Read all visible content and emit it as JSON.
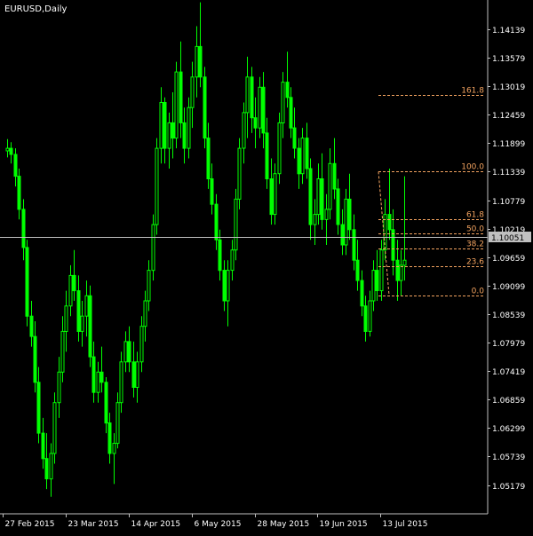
{
  "window": {
    "title": "EURUSD,Daily"
  },
  "chart_data": {
    "type": "candlestick",
    "symbol": "EURUSD",
    "timeframe": "Daily",
    "ylim": [
      1.0478,
      1.1467
    ],
    "y_ticks": [
      "1.14139",
      "1.13579",
      "1.13019",
      "1.12459",
      "1.11899",
      "1.11339",
      "1.10779",
      "1.10219",
      "1.09659",
      "1.09099",
      "1.08539",
      "1.07979",
      "1.07419",
      "1.06859",
      "1.06299",
      "1.05739",
      "1.05179"
    ],
    "x_ticks": [
      "27 Feb 2015",
      "23 Mar 2015",
      "14 Apr 2015",
      "6 May 2015",
      "28 May 2015",
      "19 Jun 2015",
      "13 Jul 2015"
    ],
    "x_tick_bar_index": [
      0,
      16,
      32,
      48,
      64,
      80,
      96
    ],
    "current_price": "1.10051",
    "bars": [
      [
        1.1175,
        1.1198,
        1.1162,
        1.118
      ],
      [
        1.118,
        1.1192,
        1.115,
        1.1168
      ],
      [
        1.1168,
        1.118,
        1.1105,
        1.1125
      ],
      [
        1.1125,
        1.114,
        1.104,
        1.106
      ],
      [
        1.106,
        1.108,
        1.096,
        1.0985
      ],
      [
        1.0985,
        1.1,
        1.083,
        1.085
      ],
      [
        1.085,
        1.088,
        1.079,
        1.081
      ],
      [
        1.081,
        1.084,
        1.07,
        1.072
      ],
      [
        1.072,
        1.075,
        1.06,
        1.062
      ],
      [
        1.062,
        1.065,
        1.055,
        1.057
      ],
      [
        1.057,
        1.062,
        1.051,
        1.053
      ],
      [
        1.053,
        1.06,
        1.0495,
        1.058
      ],
      [
        1.058,
        1.07,
        1.056,
        1.068
      ],
      [
        1.068,
        1.077,
        1.065,
        1.074
      ],
      [
        1.074,
        1.085,
        1.072,
        1.082
      ],
      [
        1.082,
        1.09,
        1.078,
        1.087
      ],
      [
        1.087,
        1.095,
        1.085,
        1.093
      ],
      [
        1.093,
        1.098,
        1.088,
        1.09
      ],
      [
        1.09,
        1.093,
        1.08,
        1.082
      ],
      [
        1.082,
        1.088,
        1.079,
        1.085
      ],
      [
        1.085,
        1.092,
        1.081,
        1.089
      ],
      [
        1.089,
        1.091,
        1.075,
        1.077
      ],
      [
        1.077,
        1.08,
        1.068,
        1.07
      ],
      [
        1.07,
        1.076,
        1.068,
        1.074
      ],
      [
        1.074,
        1.079,
        1.07,
        1.072
      ],
      [
        1.072,
        1.073,
        1.062,
        1.064
      ],
      [
        1.064,
        1.066,
        1.056,
        1.058
      ],
      [
        1.058,
        1.062,
        1.052,
        1.06
      ],
      [
        1.06,
        1.07,
        1.059,
        1.068
      ],
      [
        1.068,
        1.078,
        1.066,
        1.076
      ],
      [
        1.076,
        1.082,
        1.074,
        1.08
      ],
      [
        1.08,
        1.083,
        1.074,
        1.076
      ],
      [
        1.076,
        1.08,
        1.069,
        1.071
      ],
      [
        1.071,
        1.078,
        1.068,
        1.076
      ],
      [
        1.076,
        1.085,
        1.074,
        1.083
      ],
      [
        1.083,
        1.09,
        1.08,
        1.088
      ],
      [
        1.088,
        1.096,
        1.086,
        1.094
      ],
      [
        1.094,
        1.105,
        1.092,
        1.103
      ],
      [
        1.103,
        1.12,
        1.101,
        1.118
      ],
      [
        1.118,
        1.13,
        1.115,
        1.127
      ],
      [
        1.127,
        1.128,
        1.115,
        1.118
      ],
      [
        1.118,
        1.125,
        1.114,
        1.123
      ],
      [
        1.123,
        1.129,
        1.116,
        1.12
      ],
      [
        1.12,
        1.135,
        1.118,
        1.133
      ],
      [
        1.133,
        1.139,
        1.12,
        1.123
      ],
      [
        1.123,
        1.126,
        1.115,
        1.118
      ],
      [
        1.118,
        1.128,
        1.116,
        1.126
      ],
      [
        1.126,
        1.135,
        1.122,
        1.132
      ],
      [
        1.132,
        1.142,
        1.128,
        1.138
      ],
      [
        1.138,
        1.1467,
        1.13,
        1.132
      ],
      [
        1.132,
        1.134,
        1.118,
        1.12
      ],
      [
        1.12,
        1.123,
        1.11,
        1.112
      ],
      [
        1.112,
        1.115,
        1.105,
        1.107
      ],
      [
        1.107,
        1.109,
        1.098,
        1.1
      ],
      [
        1.1,
        1.102,
        1.092,
        1.094
      ],
      [
        1.094,
        1.096,
        1.086,
        1.088
      ],
      [
        1.088,
        1.096,
        1.083,
        1.094
      ],
      [
        1.094,
        1.1,
        1.092,
        1.098
      ],
      [
        1.098,
        1.11,
        1.096,
        1.108
      ],
      [
        1.108,
        1.12,
        1.106,
        1.118
      ],
      [
        1.118,
        1.127,
        1.115,
        1.125
      ],
      [
        1.125,
        1.136,
        1.12,
        1.132
      ],
      [
        1.132,
        1.134,
        1.121,
        1.124
      ],
      [
        1.124,
        1.128,
        1.118,
        1.122
      ],
      [
        1.122,
        1.132,
        1.12,
        1.13
      ],
      [
        1.13,
        1.133,
        1.118,
        1.121
      ],
      [
        1.121,
        1.124,
        1.11,
        1.112
      ],
      [
        1.112,
        1.116,
        1.103,
        1.105
      ],
      [
        1.105,
        1.115,
        1.103,
        1.113
      ],
      [
        1.113,
        1.125,
        1.111,
        1.123
      ],
      [
        1.123,
        1.133,
        1.12,
        1.131
      ],
      [
        1.131,
        1.137,
        1.126,
        1.128
      ],
      [
        1.128,
        1.13,
        1.12,
        1.122
      ],
      [
        1.122,
        1.126,
        1.116,
        1.118
      ],
      [
        1.118,
        1.12,
        1.11,
        1.113
      ],
      [
        1.113,
        1.122,
        1.111,
        1.12
      ],
      [
        1.12,
        1.123,
        1.112,
        1.114
      ],
      [
        1.114,
        1.116,
        1.1,
        1.103
      ],
      [
        1.103,
        1.108,
        1.099,
        1.105
      ],
      [
        1.105,
        1.115,
        1.103,
        1.112
      ],
      [
        1.112,
        1.117,
        1.102,
        1.104
      ],
      [
        1.104,
        1.109,
        1.099,
        1.106
      ],
      [
        1.106,
        1.118,
        1.104,
        1.115
      ],
      [
        1.115,
        1.12,
        1.108,
        1.11
      ],
      [
        1.11,
        1.112,
        1.101,
        1.103
      ],
      [
        1.103,
        1.106,
        1.097,
        1.099
      ],
      [
        1.099,
        1.11,
        1.097,
        1.108
      ],
      [
        1.108,
        1.113,
        1.1,
        1.102
      ],
      [
        1.102,
        1.105,
        1.094,
        1.096
      ],
      [
        1.096,
        1.1,
        1.09,
        1.092
      ],
      [
        1.092,
        1.094,
        1.085,
        1.087
      ],
      [
        1.087,
        1.089,
        1.08,
        1.082
      ],
      [
        1.082,
        1.09,
        1.081,
        1.088
      ],
      [
        1.088,
        1.096,
        1.086,
        1.094
      ],
      [
        1.094,
        1.098,
        1.088,
        1.09
      ],
      [
        1.09,
        1.1,
        1.088,
        1.098
      ],
      [
        1.098,
        1.108,
        1.096,
        1.105
      ],
      [
        1.105,
        1.114,
        1.1,
        1.102
      ],
      [
        1.102,
        1.106,
        1.093,
        1.096
      ],
      [
        1.096,
        1.1,
        1.088,
        1.092
      ],
      [
        1.092,
        1.098,
        1.089,
        1.095
      ],
      [
        1.095,
        1.1125,
        1.092,
        1.096
      ]
    ],
    "fibonacci": {
      "level_0_price": 1.0891,
      "level_100_price": 1.1134,
      "levels": [
        {
          "ratio": 0.0,
          "label": "0.0"
        },
        {
          "ratio": 0.236,
          "label": "23.6"
        },
        {
          "ratio": 0.382,
          "label": "38.2"
        },
        {
          "ratio": 0.5,
          "label": "50.0"
        },
        {
          "ratio": 0.618,
          "label": "61.8"
        },
        {
          "ratio": 1.0,
          "label": "100.0"
        },
        {
          "ratio": 1.618,
          "label": "161.8"
        }
      ]
    },
    "colors": {
      "background": "#000000",
      "candle": "#00ff00",
      "axes": "#c0c0c0",
      "text": "#ffffff",
      "fibonacci": "#f4a460",
      "price_line": "#c0c0c0",
      "price_label_bg": "#c0c0c0",
      "price_label_text": "#000000"
    }
  }
}
